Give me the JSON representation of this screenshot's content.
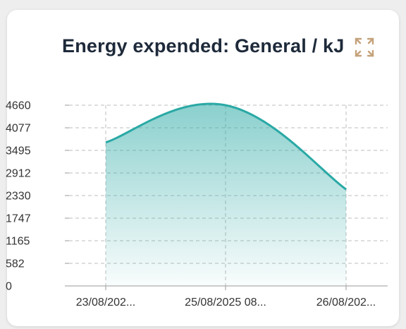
{
  "card": {
    "title": "Energy expended: General / kJ",
    "expand_icon": "expand-icon",
    "accent_color": "#c4a27a"
  },
  "chart_data": {
    "type": "area",
    "title": "Energy expended: General / kJ",
    "xlabel": "",
    "ylabel": "",
    "categories": [
      "23/08/202...",
      "25/08/2025  08...",
      "26/08/202..."
    ],
    "values": [
      3700,
      4660,
      2490
    ],
    "y_ticks": [
      0,
      582,
      1165,
      1747,
      2330,
      2912,
      3495,
      4077,
      4660
    ],
    "ylim": [
      0,
      4660
    ],
    "grid": true,
    "line_color": "#2aa9a5",
    "fill_color": "#2aa9a5"
  }
}
